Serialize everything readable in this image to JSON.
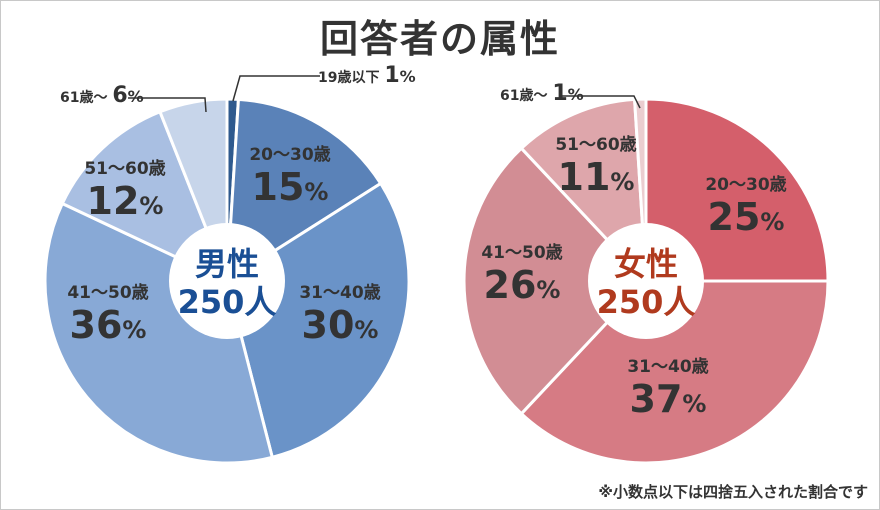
{
  "title": "回答者の属性",
  "note": "※小数点以下は四捨五入された割合です",
  "chart_data": [
    {
      "type": "pie",
      "title": "",
      "center_label": {
        "gender": "男性",
        "count": "250人"
      },
      "unit": "%",
      "categories": [
        "19歳以下",
        "20～30歳",
        "31～40歳",
        "41～50歳",
        "51～60歳",
        "61歳～"
      ],
      "values": [
        1,
        15,
        30,
        36,
        12,
        6
      ],
      "colors": [
        "#2f5a8e",
        "#5a82b8",
        "#6a93c8",
        "#88a9d6",
        "#a9bfe2",
        "#c7d5ea"
      ],
      "value_labels": [
        "1",
        "15",
        "30",
        "36",
        "12",
        "6"
      ]
    },
    {
      "type": "pie",
      "title": "",
      "center_label": {
        "gender": "女性",
        "count": "250人"
      },
      "unit": "%",
      "categories": [
        "20～30歳",
        "31～40歳",
        "41～50歳",
        "51～60歳",
        "61歳～"
      ],
      "values": [
        25,
        37,
        26,
        11,
        1
      ],
      "colors": [
        "#d45f6b",
        "#d67b84",
        "#d28d94",
        "#dea6ab",
        "#ebcdd0"
      ],
      "value_labels": [
        "25",
        "37",
        "26",
        "11",
        "1"
      ]
    }
  ]
}
